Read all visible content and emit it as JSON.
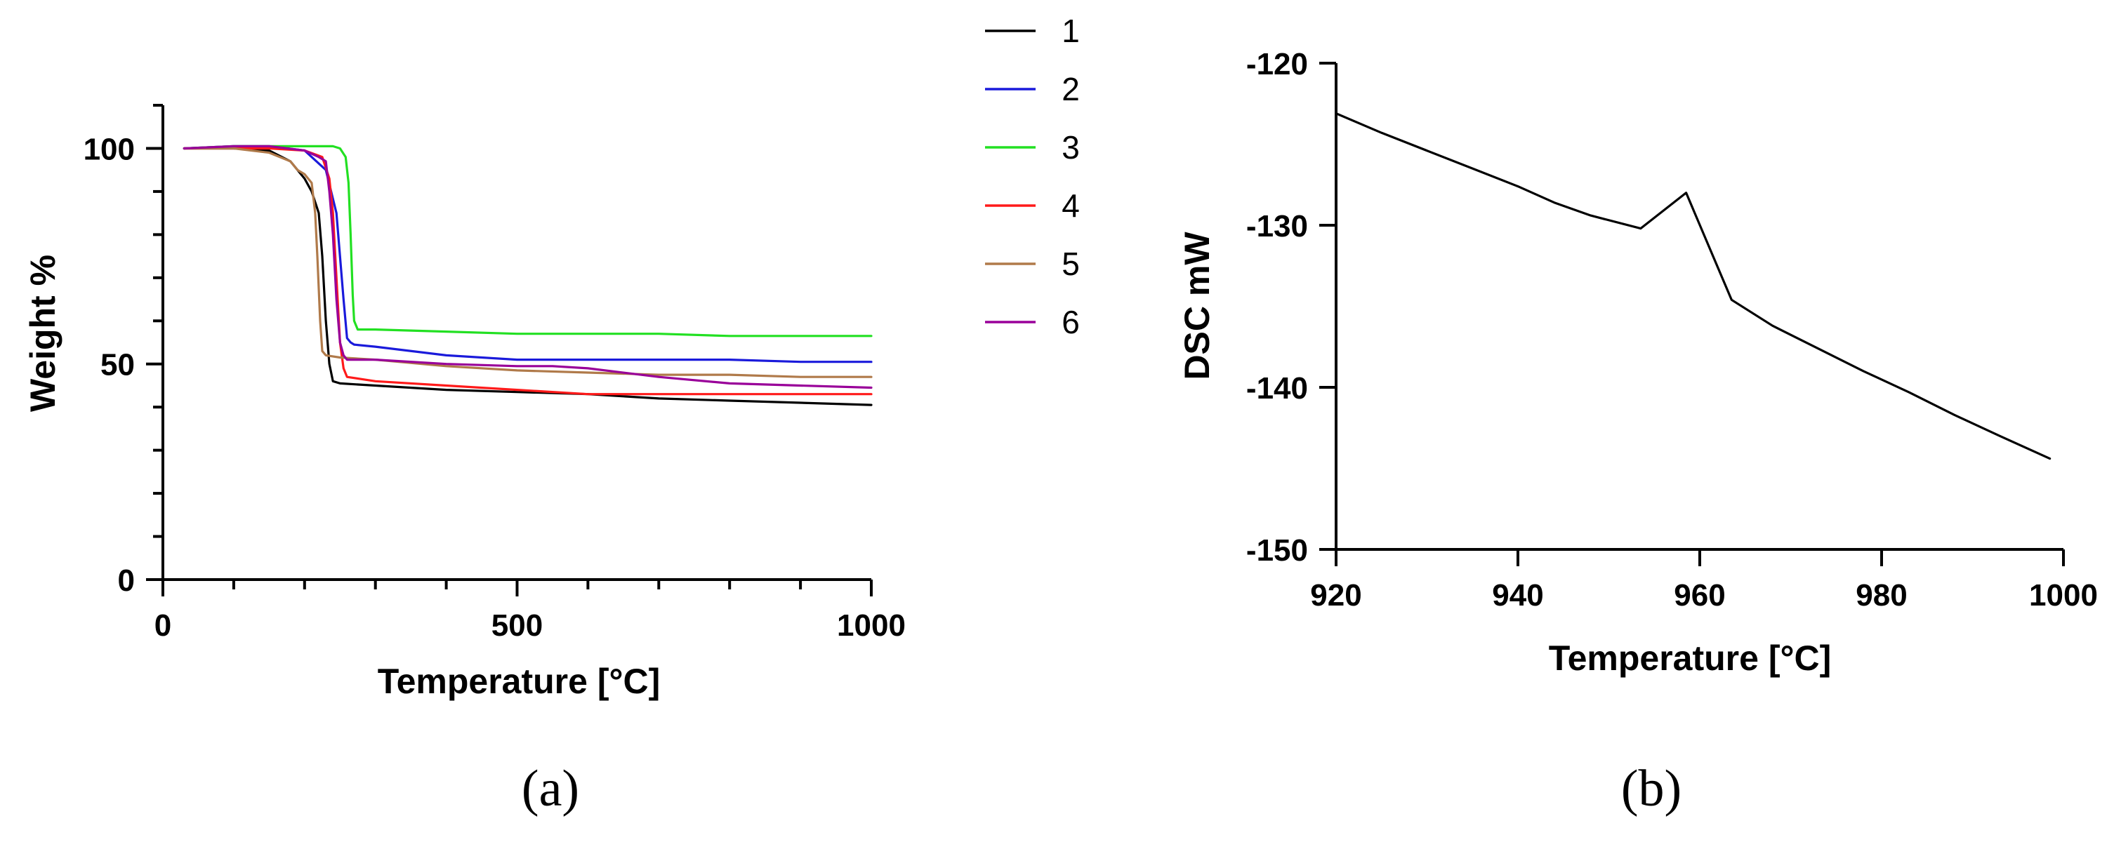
{
  "chart_data": [
    {
      "type": "line",
      "panel_label": "(a)",
      "xlabel": "Temperature [°C]",
      "ylabel": "Weight %",
      "xlim": [
        0,
        1000
      ],
      "ylim": [
        0,
        110
      ],
      "xticks": [
        0,
        500,
        1000
      ],
      "yticks": [
        0,
        50,
        100
      ],
      "legend_position": "top-right-outside",
      "series": [
        {
          "name": "1",
          "color": "#000000",
          "x": [
            30,
            100,
            150,
            180,
            200,
            210,
            220,
            225,
            230,
            235,
            240,
            250,
            300,
            400,
            500,
            600,
            700,
            800,
            900,
            1000
          ],
          "y": [
            100,
            100,
            99.5,
            97,
            93,
            90,
            85,
            75,
            60,
            50,
            46,
            45.5,
            45,
            44,
            43.5,
            43,
            42,
            41.5,
            41,
            40.5
          ]
        },
        {
          "name": "2",
          "color": "#1a1adb",
          "x": [
            30,
            100,
            150,
            200,
            230,
            245,
            255,
            260,
            265,
            270,
            300,
            400,
            500,
            600,
            700,
            800,
            900,
            1000
          ],
          "y": [
            100,
            100.5,
            100.5,
            99.5,
            95,
            85,
            65,
            56,
            55,
            54.5,
            54,
            52,
            51,
            51,
            51,
            51,
            50.5,
            50.5
          ]
        },
        {
          "name": "3",
          "color": "#22e022",
          "x": [
            30,
            100,
            150,
            200,
            240,
            250,
            258,
            262,
            265,
            268,
            270,
            275,
            300,
            400,
            500,
            600,
            700,
            800,
            900,
            1000
          ],
          "y": [
            100,
            100.5,
            100.5,
            100.5,
            100.5,
            100,
            98,
            92,
            80,
            66,
            60,
            58,
            58,
            57.5,
            57,
            57,
            57,
            56.5,
            56.5,
            56.5
          ]
        },
        {
          "name": "4",
          "color": "#ff1a1a",
          "x": [
            30,
            100,
            150,
            200,
            225,
            235,
            240,
            245,
            250,
            255,
            260,
            300,
            400,
            500,
            600,
            700,
            800,
            900,
            1000
          ],
          "y": [
            100,
            100,
            100,
            99.5,
            98,
            93,
            85,
            70,
            55,
            49,
            47,
            46,
            45,
            44,
            43,
            43,
            43,
            43,
            43
          ]
        },
        {
          "name": "5",
          "color": "#b07a4a",
          "x": [
            30,
            100,
            150,
            180,
            190,
            200,
            210,
            215,
            218,
            222,
            225,
            230,
            250,
            300,
            400,
            500,
            600,
            700,
            800,
            900,
            1000
          ],
          "y": [
            100,
            100,
            99,
            97,
            95,
            94,
            92,
            85,
            75,
            60,
            53,
            52,
            51.5,
            51,
            49.5,
            48.5,
            48,
            47.5,
            47.5,
            47,
            47
          ]
        },
        {
          "name": "6",
          "color": "#990099",
          "x": [
            30,
            100,
            150,
            200,
            220,
            230,
            235,
            240,
            245,
            250,
            255,
            260,
            300,
            400,
            500,
            550,
            600,
            700,
            800,
            900,
            1000
          ],
          "y": [
            100,
            100.5,
            100.5,
            99.5,
            98,
            97,
            90,
            80,
            65,
            55,
            52,
            51,
            51,
            50,
            49.5,
            49.5,
            49,
            47,
            45.5,
            45,
            44.5
          ]
        }
      ]
    },
    {
      "type": "line",
      "panel_label": "(b)",
      "xlabel": "Temperature [°C]",
      "ylabel": "DSC mW",
      "xlim": [
        920,
        1000
      ],
      "ylim": [
        -150,
        -120
      ],
      "xticks": [
        920,
        940,
        960,
        980,
        1000
      ],
      "yticks": [
        -150,
        -140,
        -130,
        -120
      ],
      "series": [
        {
          "name": "DSC",
          "color": "#000000",
          "x": [
            920,
            925,
            930,
            935,
            940,
            944,
            948,
            953.5,
            958.5,
            963.5,
            968,
            973,
            978,
            983,
            988,
            993,
            998.5
          ],
          "y": [
            -123.1,
            -124.3,
            -125.4,
            -126.5,
            -127.6,
            -128.6,
            -129.4,
            -130.2,
            -128.0,
            -134.6,
            -136.2,
            -137.6,
            -139.0,
            -140.3,
            -141.7,
            -143.0,
            -144.4
          ]
        }
      ]
    }
  ]
}
